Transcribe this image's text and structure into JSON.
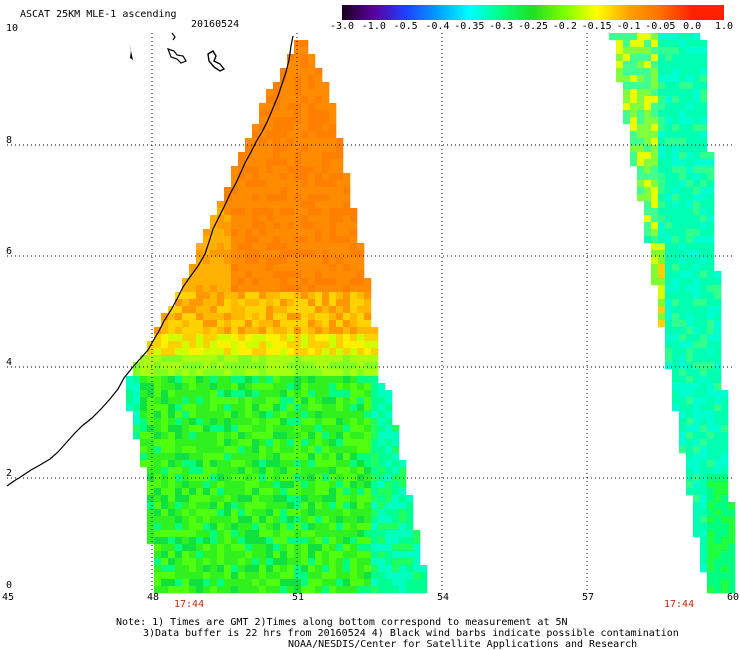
{
  "header": {
    "title": "ASCAT 25KM MLE-1 ascending",
    "date": "20160524"
  },
  "colorbar": {
    "labels": [
      "-3.0",
      "-1.0",
      "-0.5",
      "-0.4",
      "-0.35",
      "-0.3",
      "-0.25",
      "-0.2",
      "-0.15",
      "-0.1",
      "-0.05",
      "0.0",
      "1.0"
    ],
    "colors": [
      "#1a001a",
      "#5a00a0",
      "#2040ff",
      "#00a0ff",
      "#00ffff",
      "#00ff80",
      "#20e020",
      "#80ff00",
      "#ffff00",
      "#ffa000",
      "#ff7000",
      "#ff2000"
    ]
  },
  "axes": {
    "x_ticks": [
      "45",
      "48",
      "51",
      "54",
      "57",
      "60"
    ],
    "y_ticks": [
      "0",
      "2",
      "4",
      "6",
      "8",
      "10"
    ],
    "grid": "dotted"
  },
  "times": [
    "17:44",
    "17:44"
  ],
  "notes": {
    "line1": "Note: 1) Times are GMT 2)Times along bottom correspond to measurement at 5N",
    "line2": "3)Data buffer is 22 hrs from 20160524 4) Black wind barbs indicate possible contamination",
    "line3": "NOAA/NESDIS/Center for Satellite Applications and Research"
  }
}
